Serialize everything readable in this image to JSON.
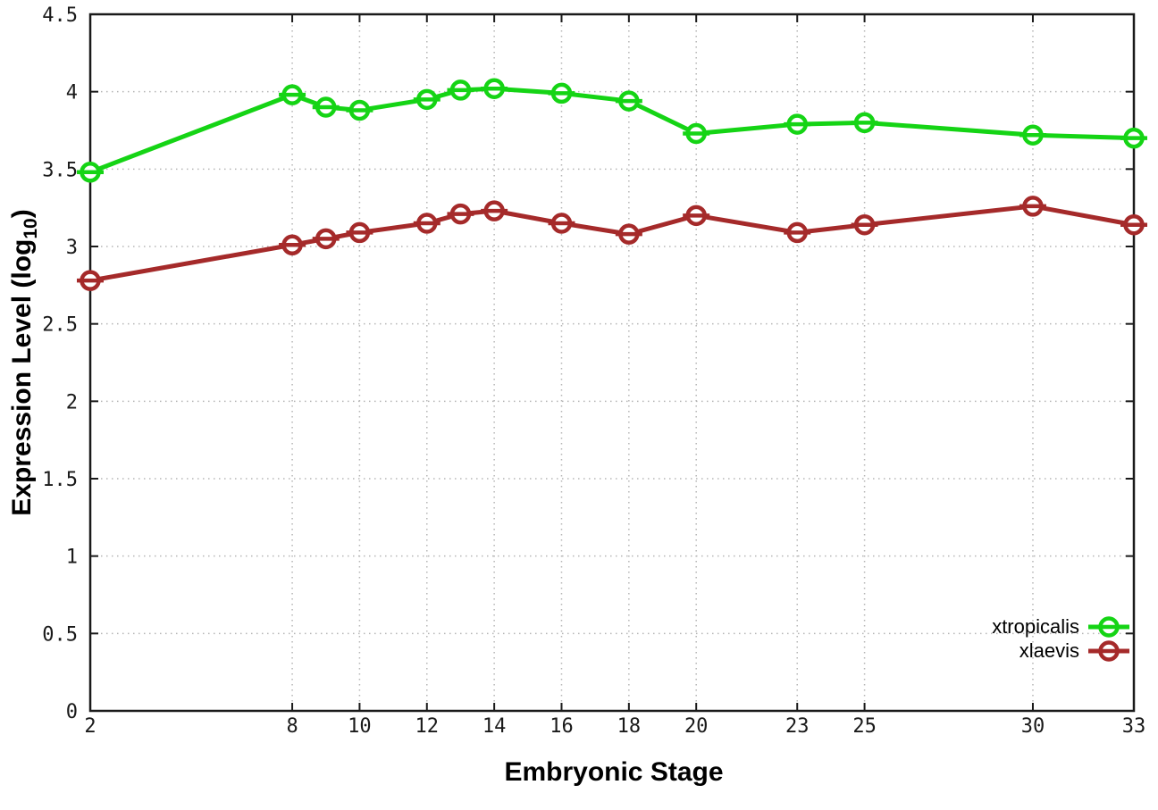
{
  "chart_data": {
    "type": "line",
    "title": "",
    "xlabel": "Embryonic Stage",
    "ylabel": {
      "prefix": "Expression Level (log",
      "subscript": "10",
      "suffix": ")"
    },
    "x": [
      2,
      8,
      9,
      10,
      12,
      13,
      14,
      16,
      18,
      20,
      23,
      25,
      30,
      33
    ],
    "series": [
      {
        "name": "xtropicalis",
        "color": "#15d415",
        "values": [
          3.48,
          3.98,
          3.9,
          3.88,
          3.95,
          4.01,
          4.02,
          3.99,
          3.94,
          3.73,
          3.79,
          3.8,
          3.72,
          3.7
        ]
      },
      {
        "name": "xlaevis",
        "color": "#a52a2a",
        "values": [
          2.78,
          3.01,
          3.05,
          3.09,
          3.15,
          3.21,
          3.23,
          3.15,
          3.08,
          3.2,
          3.09,
          3.14,
          3.26,
          3.14
        ]
      }
    ],
    "xticks": {
      "values": [
        2,
        8,
        10,
        12,
        14,
        16,
        18,
        20,
        23,
        25,
        30,
        33
      ],
      "labels": [
        "2",
        "8",
        "10",
        "12",
        "14",
        "16",
        "18",
        "20",
        "23",
        "25",
        "30",
        "33"
      ]
    },
    "yticks": {
      "values": [
        0,
        0.5,
        1,
        1.5,
        2,
        2.5,
        3,
        3.5,
        4,
        4.5
      ],
      "labels": [
        "0",
        "0.5",
        "1",
        "1.5",
        "2",
        "2.5",
        "3",
        "3.5",
        "4",
        "4.5"
      ]
    },
    "xlim": [
      2,
      33
    ],
    "ylim": [
      0,
      4.5
    ],
    "grid": true,
    "marker": "circle-hbar",
    "legend": {
      "position": "bottom-right",
      "entries": [
        "xtropicalis",
        "xlaevis"
      ]
    },
    "colors": {
      "axis": "#1a1a1a",
      "grid": "#b5b5b5",
      "text": "#1a1a1a"
    }
  }
}
